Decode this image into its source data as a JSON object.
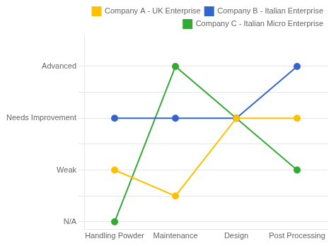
{
  "chart_data": {
    "type": "line",
    "categories": [
      "Handling Powder",
      "Maintenance",
      "Design",
      "Post Processing"
    ],
    "series": [
      {
        "name": "Company A - UK Enterprise",
        "color": "#FFC000",
        "values": [
          2,
          1,
          4,
          4
        ],
        "marker": "circle",
        "line_style": "solid"
      },
      {
        "name": "Company B - Italian Enterprise",
        "color": "#3366CC",
        "values": [
          4,
          4,
          4,
          6
        ],
        "marker": "circle",
        "line_style": "solid"
      },
      {
        "name": "Company C - Italian Micro Enterprise",
        "color": "#33AA33",
        "values": [
          0,
          6,
          4,
          2
        ],
        "marker": "circle",
        "line_style": "solid"
      }
    ],
    "ylim": [
      -0.3,
      7.2
    ],
    "yticks": [
      {
        "value": 0,
        "label": "N/A"
      },
      {
        "value": 1,
        "label": ""
      },
      {
        "value": 2,
        "label": "Weak"
      },
      {
        "value": 3,
        "label": ""
      },
      {
        "value": 4,
        "label": "Needs Improvement"
      },
      {
        "value": 5,
        "label": ""
      },
      {
        "value": 6,
        "label": "Advanced"
      }
    ],
    "grid": "y",
    "legend": "upper right"
  }
}
